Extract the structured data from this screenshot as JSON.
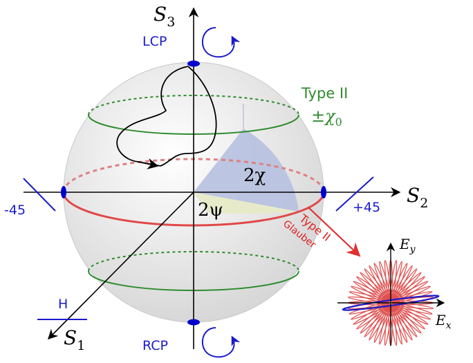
{
  "axes": {
    "s1": {
      "symbol": "S",
      "subscript": "1"
    },
    "s2": {
      "symbol": "S",
      "subscript": "2"
    },
    "s3": {
      "symbol": "S",
      "subscript": "3"
    }
  },
  "poles": {
    "north": "LCP",
    "south": "RCP"
  },
  "equator_points": {
    "left": "-45",
    "right": "+45",
    "front": "H"
  },
  "angles": {
    "latitude": "2χ",
    "longitude": "2ψ"
  },
  "type_ii_circles": {
    "title": "Type II",
    "value": "±χ",
    "value_subscript": "0"
  },
  "type_ii_glauber": {
    "line1": "Type II",
    "line2": "Glauber"
  },
  "field_axes": {
    "ex": {
      "symbol": "E",
      "subscript": "x"
    },
    "ey": {
      "symbol": "E",
      "subscript": "y"
    }
  },
  "colors": {
    "axis": "#000000",
    "sphere": "#dcdcdc",
    "equator": "#e05050",
    "type_ii_circle": "#2e8b2e",
    "markers": "#0000cc",
    "blue_text": "#1a1acc",
    "green_text": "#2e8b2e",
    "red_text": "#e02020",
    "wedge_latitude": "#b8c4e0",
    "wedge_longitude": "#e8ecc8",
    "glauber_star": "#e05050",
    "glauber_ellipse": "#1a1acc"
  }
}
